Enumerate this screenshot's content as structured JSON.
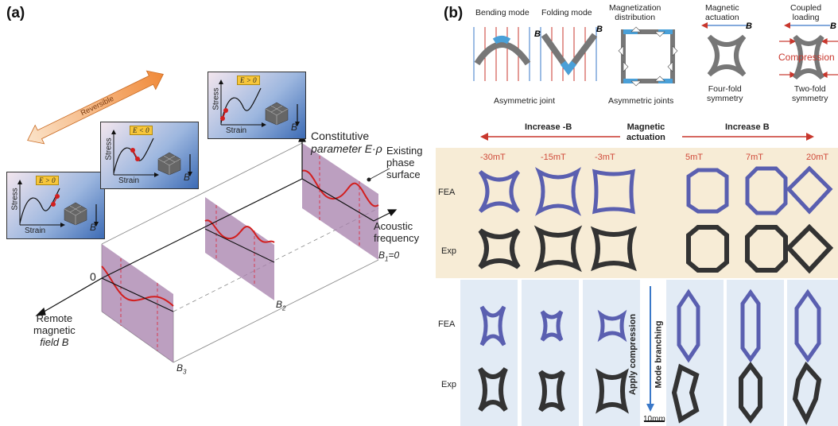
{
  "panel_a": {
    "label": "(a)",
    "reversible": "Reversible",
    "axis_title_line1": "Constitutive",
    "axis_title_line2": "parameter E·ρ",
    "existing_line1": "Existing",
    "existing_line2": "phase",
    "existing_line3": "surface",
    "acoustic_line1": "Acoustic",
    "acoustic_line2": "frequency",
    "zero": "0",
    "b1": "B",
    "b1_sub": "1",
    "b1_tail": "=0",
    "b2": "B",
    "b2_sub": "2",
    "b3": "B",
    "b3_sub": "3",
    "remote_line1": "Remote",
    "remote_line2": "magnetic",
    "remote_line3": "field B",
    "insets": [
      {
        "badge": "E > 0",
        "stress": "Stress",
        "strain": "Strain",
        "b": "B"
      },
      {
        "badge": "E < 0",
        "stress": "Stress",
        "strain": "Strain",
        "b": "B"
      },
      {
        "badge": "E > 0",
        "stress": "Stress",
        "strain": "Strain",
        "b": "B"
      }
    ]
  },
  "panel_b": {
    "label": "(b)",
    "top": {
      "bending": "Bending mode",
      "folding": "Folding mode",
      "b_letter": "B",
      "asym_joint": "Asymmetric joint",
      "magdist_line1": "Magnetization",
      "magdist_line2": "distribution",
      "asym_joints": "Asymmetric joints",
      "magact_line1": "Magnetic",
      "magact_line2": "actuation",
      "fourfold_line1": "Four-fold",
      "fourfold_line2": "symmetry",
      "coupled_line1": "Coupled",
      "coupled_line2": "loading",
      "compression": "Compression",
      "twofold_line1": "Two-fold",
      "twofold_line2": "symmetry"
    },
    "arrows": {
      "increase_neg": "Increase -B",
      "mag_line1": "Magnetic",
      "mag_line2": "actuation",
      "increase_pos": "Increase B"
    },
    "fields": [
      "-30mT",
      "-15mT",
      "-3mT",
      "5mT",
      "7mT",
      "20mT"
    ],
    "row_fea": "FEA",
    "row_exp": "Exp",
    "apply_compression": "Apply compression",
    "mode_branching": "Mode branching",
    "scale": "10mm",
    "colors": {
      "fea": "#5a5fb0",
      "red": "#c8372d",
      "blue": "#3a78c8",
      "cream": "#f7ecd6",
      "lightblue": "#e2ebf5"
    }
  }
}
